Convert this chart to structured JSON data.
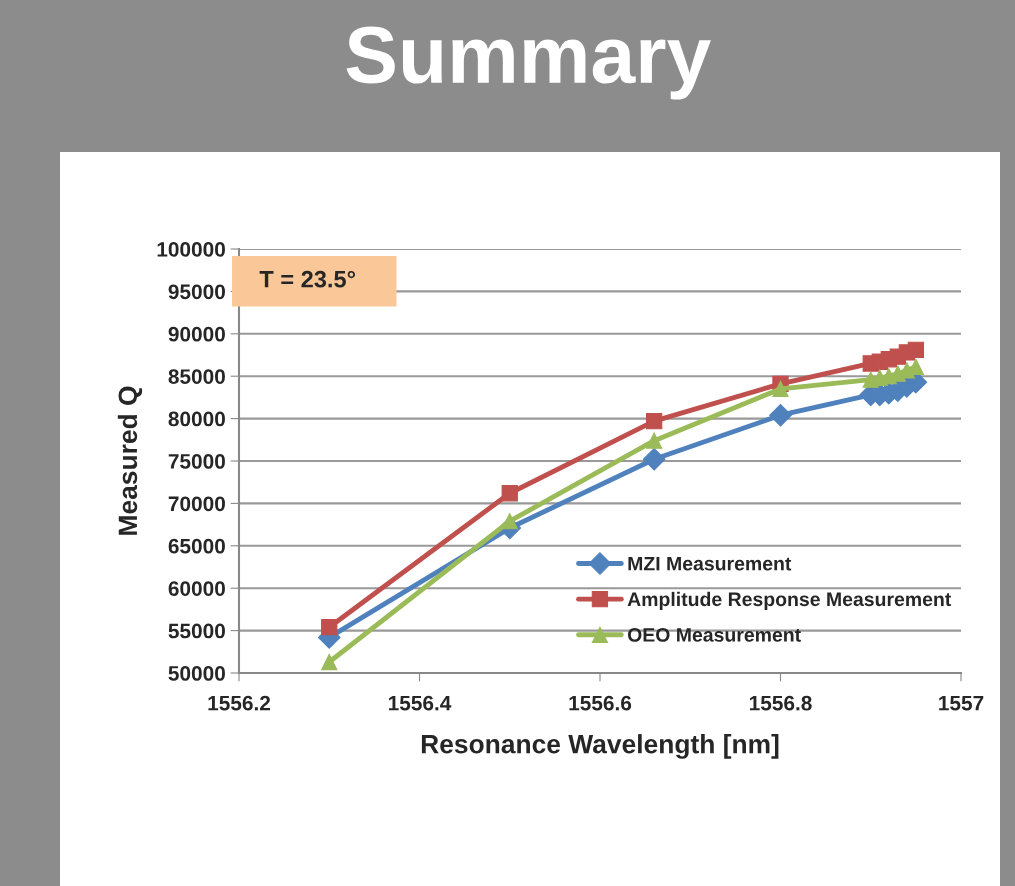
{
  "chart_data": {
    "type": "line",
    "title": "Summary",
    "xlabel": "Resonance Wavelength [nm]",
    "ylabel": "Measured Q",
    "annotations": [
      "T = 23.5°"
    ],
    "x": [
      1556.3,
      1556.5,
      1556.66,
      1556.8,
      1556.9,
      1556.91,
      1556.92,
      1556.93,
      1556.94,
      1556.95
    ],
    "series": [
      {
        "name": "MZI Measurement",
        "color": "#4f81bd",
        "marker": "diamond",
        "values": [
          54200,
          67100,
          75200,
          80400,
          82800,
          82800,
          83000,
          83300,
          83800,
          84300
        ]
      },
      {
        "name": "Amplitude Response Measurement",
        "color": "#c0504d",
        "marker": "square",
        "values": [
          55400,
          71200,
          79700,
          84100,
          86500,
          86700,
          87000,
          87300,
          87800,
          88100
        ]
      },
      {
        "name": "OEO Measurement",
        "color": "#9bbb59",
        "marker": "triangle",
        "values": [
          51300,
          67900,
          77400,
          83500,
          84600,
          84800,
          85000,
          85300,
          85700,
          86100
        ]
      }
    ],
    "xlim": [
      1556.2,
      1557
    ],
    "xticks": [
      1556.2,
      1556.4,
      1556.6,
      1556.8,
      1557
    ],
    "ylim": [
      50000,
      100000
    ],
    "yticks": [
      50000,
      55000,
      60000,
      65000,
      70000,
      75000,
      80000,
      85000,
      90000,
      95000,
      100000
    ],
    "grid": "y",
    "legend": "right"
  }
}
